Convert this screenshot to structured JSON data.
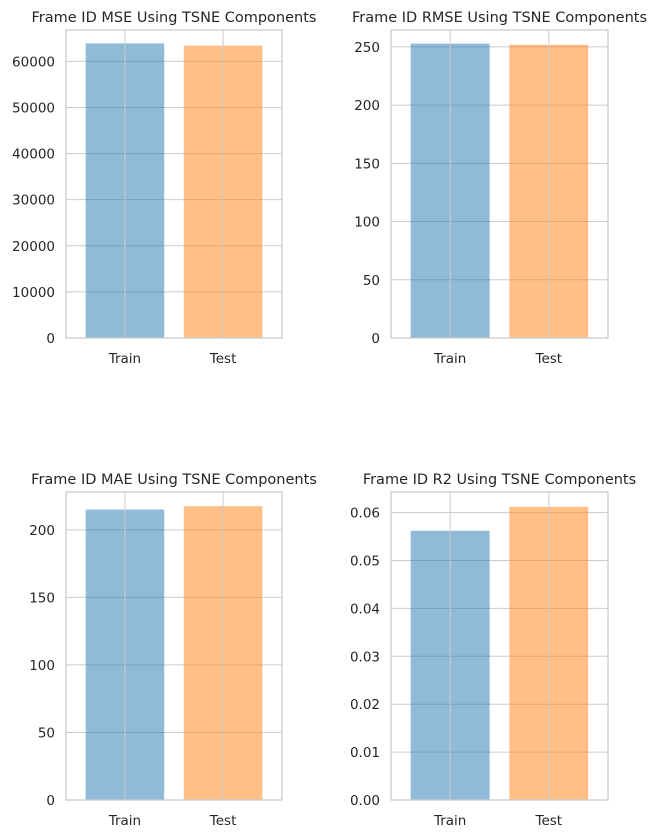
{
  "chart_data": [
    {
      "type": "bar",
      "title": "Frame ID MSE Using TSNE Components",
      "categories": [
        "Train",
        "Test"
      ],
      "values": [
        63900,
        63400
      ],
      "ylim": [
        0,
        66800
      ],
      "yticks": [
        0,
        10000,
        20000,
        30000,
        40000,
        50000,
        60000
      ],
      "ytick_labels": [
        "0",
        "10000",
        "20000",
        "30000",
        "40000",
        "50000",
        "60000"
      ],
      "colors": [
        "#1f77b4",
        "#ff7f0e"
      ],
      "grid": true
    },
    {
      "type": "bar",
      "title": "Frame ID RMSE Using TSNE Components",
      "categories": [
        "Train",
        "Test"
      ],
      "values": [
        252.8,
        251.8
      ],
      "ylim": [
        0,
        264.5
      ],
      "yticks": [
        0,
        50,
        100,
        150,
        200,
        250
      ],
      "ytick_labels": [
        "0",
        "50",
        "100",
        "150",
        "200",
        "250"
      ],
      "colors": [
        "#1f77b4",
        "#ff7f0e"
      ],
      "grid": true
    },
    {
      "type": "bar",
      "title": "Frame ID MAE Using TSNE Components",
      "categories": [
        "Train",
        "Test"
      ],
      "values": [
        215,
        217.5
      ],
      "ylim": [
        0,
        228
      ],
      "yticks": [
        0,
        50,
        100,
        150,
        200
      ],
      "ytick_labels": [
        "0",
        "50",
        "100",
        "150",
        "200"
      ],
      "colors": [
        "#1f77b4",
        "#ff7f0e"
      ],
      "grid": true
    },
    {
      "type": "bar",
      "title": "Frame ID R2 Using TSNE Components",
      "categories": [
        "Train",
        "Test"
      ],
      "values": [
        0.0562,
        0.0612
      ],
      "ylim": [
        0,
        0.0643
      ],
      "yticks": [
        0,
        0.01,
        0.02,
        0.03,
        0.04,
        0.05,
        0.06
      ],
      "ytick_labels": [
        "0.00",
        "0.01",
        "0.02",
        "0.03",
        "0.04",
        "0.05",
        "0.06"
      ],
      "colors": [
        "#1f77b4",
        "#ff7f0e"
      ],
      "grid": true
    }
  ]
}
